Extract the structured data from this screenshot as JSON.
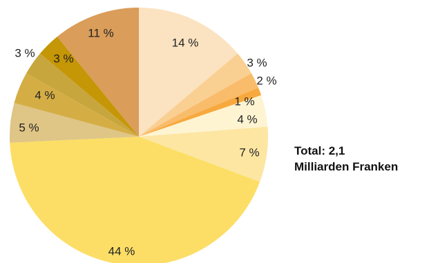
{
  "chart_data": {
    "type": "pie",
    "values": [
      14,
      3,
      2,
      1,
      4,
      7,
      44,
      5,
      4,
      3,
      3,
      11
    ],
    "labels": [
      "14 %",
      "3 %",
      "2 %",
      "1 %",
      "4 %",
      "7 %",
      "44 %",
      "5 %",
      "4 %",
      "3 %",
      "3 %",
      "11 %"
    ],
    "colors": [
      "#FBE3C1",
      "#FACF92",
      "#F9BC6B",
      "#F7A93D",
      "#FEF4D2",
      "#FCE6A2",
      "#FCDE66",
      "#DFC586",
      "#D4AE45",
      "#C8A63E",
      "#C59606",
      "#DA9D5A"
    ],
    "start": "12 o'clock",
    "direction": "clockwise",
    "legend": "none"
  },
  "total": {
    "line1": "Total: 2,1",
    "line2": "Milliarden Franken"
  }
}
